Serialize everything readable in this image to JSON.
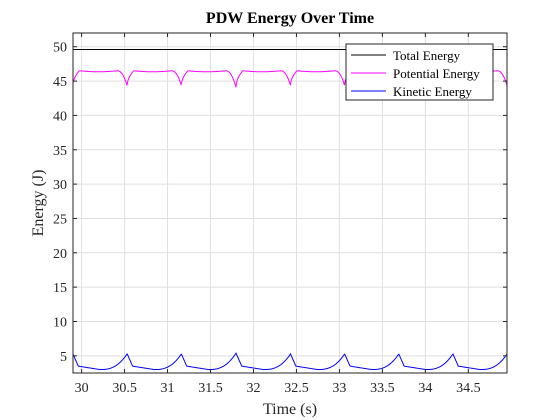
{
  "chart_data": {
    "type": "line",
    "title": "PDW Energy Over Time",
    "xlabel": "Time (s)",
    "ylabel": "Energy (J)",
    "xlim": [
      29.9,
      34.95
    ],
    "ylim": [
      2.5,
      52
    ],
    "xticks": [
      30,
      30.5,
      31,
      31.5,
      32,
      32.5,
      33,
      33.5,
      34,
      34.5
    ],
    "xtick_labels": [
      "30",
      "30.5",
      "31",
      "31.5",
      "32",
      "32.5",
      "33",
      "33.5",
      "34",
      "34.5"
    ],
    "yticks": [
      5,
      10,
      15,
      20,
      25,
      30,
      35,
      40,
      45,
      50
    ],
    "ytick_labels": [
      "5",
      "10",
      "15",
      "20",
      "25",
      "30",
      "35",
      "40",
      "45",
      "50"
    ],
    "grid": true,
    "legend_position": "top-right",
    "step_period": 0.632,
    "step_times": [
      30.53,
      31.16,
      31.8,
      32.43,
      33.06,
      33.69,
      34.32
    ],
    "series": [
      {
        "name": "Total Energy",
        "color": "#000000",
        "level": 49.6
      },
      {
        "name": "Potential Energy",
        "color": "#ff00ff",
        "max": 46.5,
        "min_at_impact": 44.3
      },
      {
        "name": "Kinetic Energy",
        "color": "#0000ff",
        "base": 3.0,
        "peak_at_impact": 5.3
      }
    ]
  }
}
